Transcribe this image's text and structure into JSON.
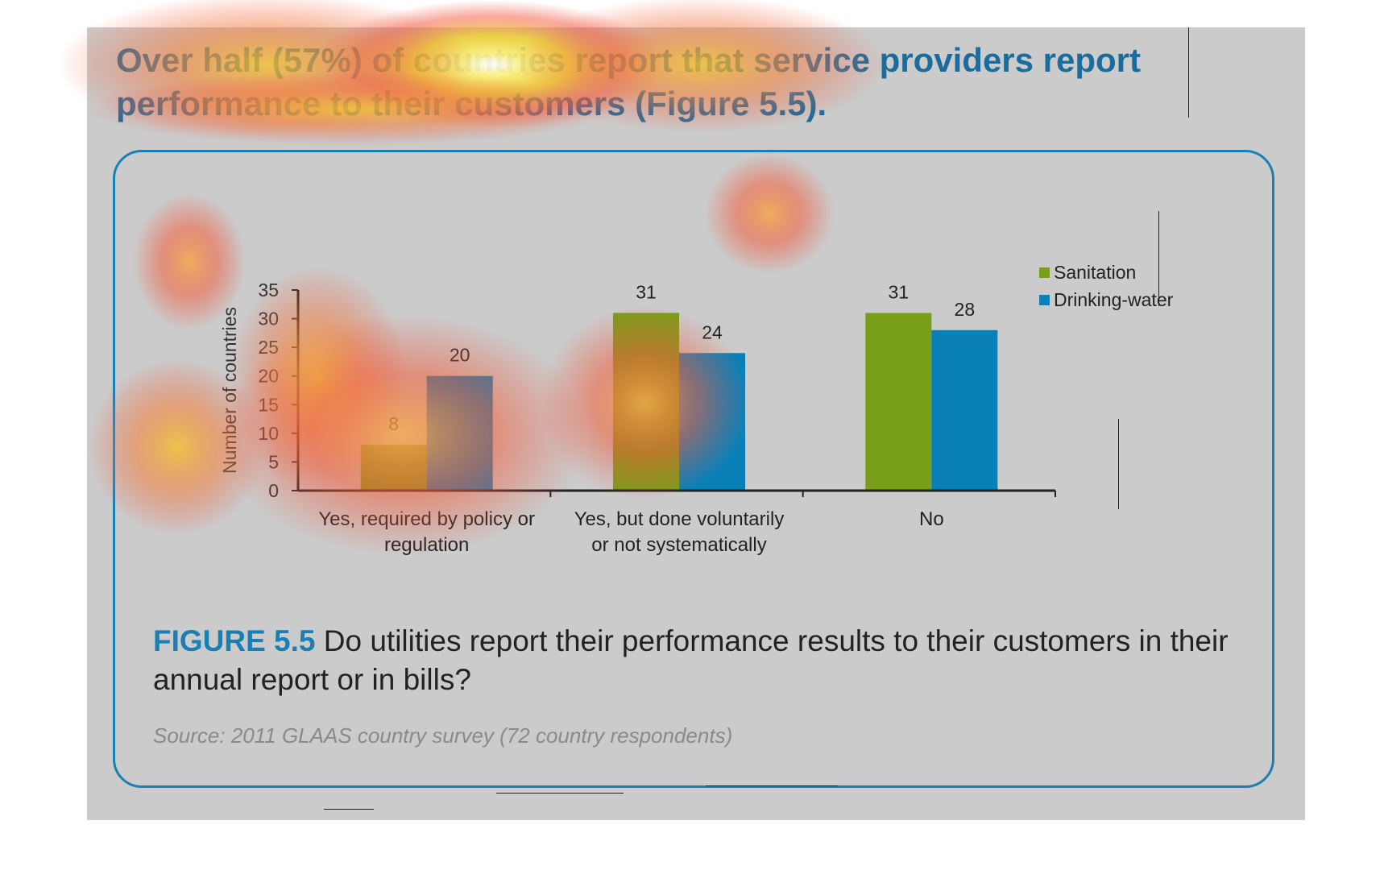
{
  "headline": "Over half (57%) of countries report that service providers report performance to their customers (Figure 5.5).",
  "caption": {
    "label": "FIGURE 5.5",
    "text": " Do utilities report their performance results to their customers in their annual report or in bills?"
  },
  "source": "Source: 2011 GLAAS country survey (72 country respondents)",
  "colors": {
    "sanitation": "#789e1a",
    "drinking_water": "#0a80b8",
    "accent": "#1a80b4"
  },
  "chart_data": {
    "type": "bar",
    "ylabel": "Number of countries",
    "ylim": [
      0,
      35
    ],
    "yticks": [
      0,
      5,
      10,
      15,
      20,
      25,
      30,
      35
    ],
    "categories": [
      [
        "Yes, required by policy or",
        "regulation"
      ],
      [
        "Yes, but done voluntarily",
        "or not systematically"
      ],
      [
        "No"
      ]
    ],
    "series": [
      {
        "name": "Sanitation",
        "values": [
          8,
          31,
          31
        ]
      },
      {
        "name": "Drinking-water",
        "values": [
          20,
          24,
          28
        ]
      }
    ],
    "legend": "top-right",
    "grid": false,
    "data_labels": true
  }
}
